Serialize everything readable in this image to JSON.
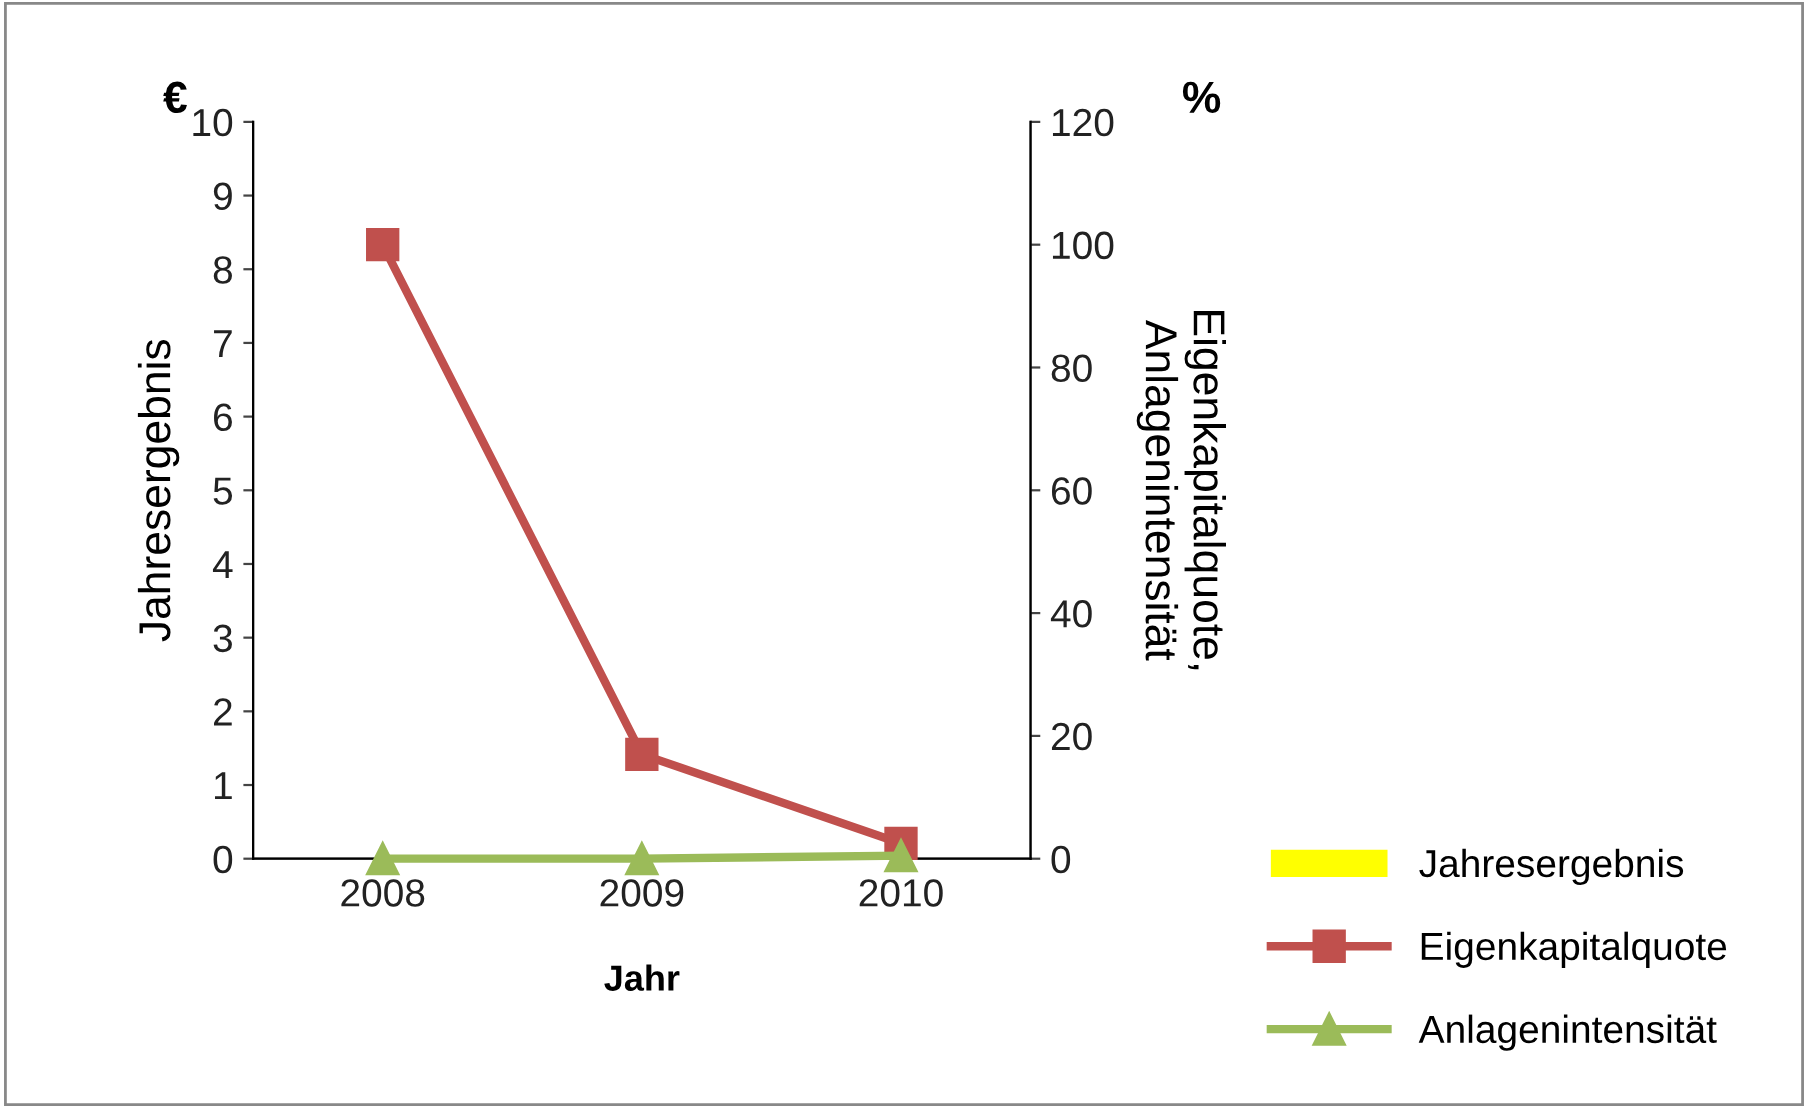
{
  "chart_data": {
    "type": "bar",
    "categories": [
      "2008",
      "2009",
      "2010"
    ],
    "xlabel": "Jahr",
    "ylabel": "Jahresergebnis",
    "y2label": "Eigenkapitalquote,\nAnlagenintensität",
    "annotations": [
      "€",
      "%"
    ],
    "series": [
      {
        "name": "Jahresergebnis",
        "color": "#ffff00",
        "values": [
          0,
          0,
          0
        ]
      },
      {
        "name": "Eigenkapitalquote",
        "type": "line",
        "axis": "y2",
        "color": "#c0504d",
        "marker": "square",
        "values": [
          100,
          17,
          2.5
        ]
      },
      {
        "name": "Anlagenintensität",
        "type": "line",
        "axis": "y2",
        "color": "#9bbb59",
        "marker": "triangle",
        "values": [
          0,
          0,
          0.5
        ]
      }
    ],
    "ylim": [
      0,
      10
    ],
    "yticks": [
      0,
      1,
      2,
      3,
      4,
      5,
      6,
      7,
      8,
      9,
      10
    ],
    "y2lim": [
      0,
      120
    ],
    "y2ticks": [
      0,
      20,
      40,
      60,
      80,
      100,
      120
    ],
    "grid": false,
    "legend": "bottom right"
  }
}
